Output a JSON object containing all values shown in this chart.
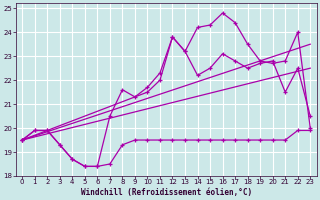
{
  "bg_color": "#cce8e8",
  "grid_color": "#ffffff",
  "line_color": "#aa00aa",
  "xlabel": "Windchill (Refroidissement éolien,°C)",
  "xlim": [
    -0.5,
    23.5
  ],
  "ylim": [
    18,
    25.2
  ],
  "yticks": [
    18,
    19,
    20,
    21,
    22,
    23,
    24,
    25
  ],
  "xticks": [
    0,
    1,
    2,
    3,
    4,
    5,
    6,
    7,
    8,
    9,
    10,
    11,
    12,
    13,
    14,
    15,
    16,
    17,
    18,
    19,
    20,
    21,
    22,
    23
  ],
  "line1_x": [
    0,
    1,
    2,
    3,
    4,
    5,
    6,
    7,
    8,
    9,
    10,
    11,
    12,
    13,
    14,
    15,
    16,
    17,
    18,
    19,
    20,
    21,
    22,
    23
  ],
  "line1_y": [
    19.5,
    19.9,
    19.9,
    19.3,
    18.7,
    18.4,
    18.4,
    18.5,
    19.3,
    19.5,
    19.5,
    19.5,
    19.5,
    19.5,
    19.5,
    19.5,
    19.5,
    19.5,
    19.5,
    19.5,
    19.5,
    19.5,
    19.9,
    19.9
  ],
  "line2_x": [
    0,
    1,
    2,
    3,
    4,
    5,
    6,
    7,
    8,
    9,
    10,
    11,
    12,
    13,
    14,
    15,
    16,
    17,
    18,
    19,
    20,
    21,
    22,
    23
  ],
  "line2_y": [
    19.5,
    19.9,
    19.9,
    19.3,
    18.7,
    18.4,
    18.4,
    20.5,
    21.6,
    21.3,
    21.7,
    22.3,
    23.8,
    23.2,
    22.2,
    22.5,
    23.1,
    22.8,
    22.5,
    22.7,
    22.8,
    21.5,
    22.5,
    20.5
  ],
  "line3_x": [
    0,
    23
  ],
  "line3_y": [
    19.5,
    22.5
  ],
  "line4_x": [
    0,
    23
  ],
  "line4_y": [
    19.5,
    23.5
  ],
  "line5_x": [
    0,
    10,
    11,
    12,
    13,
    14,
    15,
    16,
    17,
    18,
    19,
    20,
    21,
    22,
    23
  ],
  "line5_y": [
    19.5,
    21.5,
    22.0,
    23.8,
    23.2,
    24.2,
    24.3,
    24.8,
    24.4,
    23.5,
    22.8,
    22.7,
    22.8,
    24.0,
    20.0
  ]
}
